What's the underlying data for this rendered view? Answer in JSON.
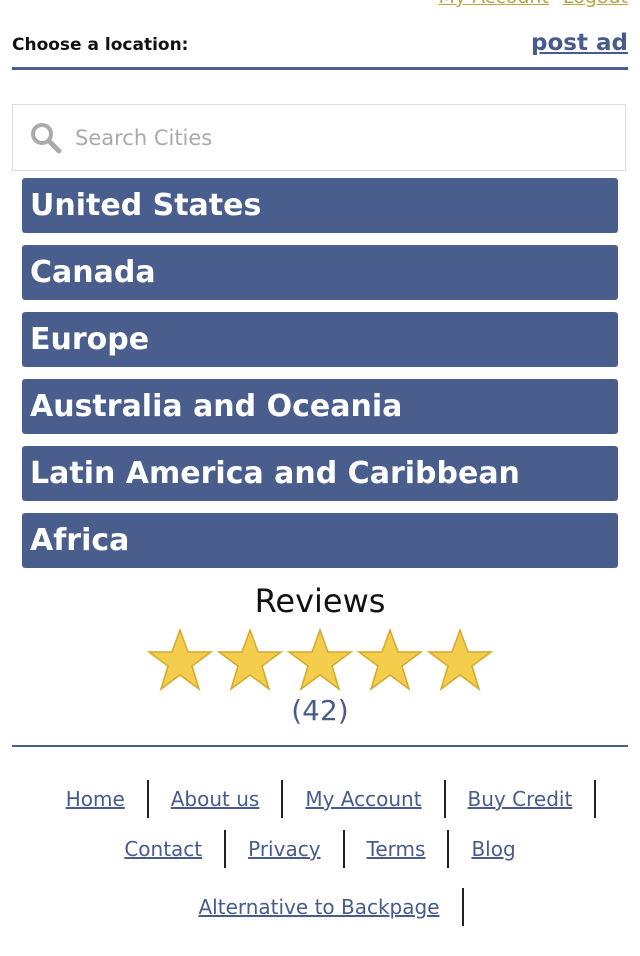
{
  "top_links": [
    "My Account",
    "Logout"
  ],
  "header": {
    "choose_label": "Choose a location:",
    "post_ad": "post ad"
  },
  "search": {
    "placeholder": "Search Cities",
    "icon": "search-icon"
  },
  "regions": [
    "United States",
    "Canada",
    "Europe",
    "Australia and Oceania",
    "Latin America and Caribbean",
    "Africa"
  ],
  "reviews": {
    "title": "Reviews",
    "rating": 5,
    "max": 5,
    "count": "(42)"
  },
  "footer": {
    "row1": [
      "Home",
      "About us",
      "My Account",
      "Buy Credit"
    ],
    "row2": [
      "Contact",
      "Privacy",
      "Terms",
      "Blog"
    ],
    "row3": [
      "Alternative to Backpage"
    ]
  },
  "colors": {
    "primary": "#4a5e8e",
    "star": "#f4cd4c",
    "toplink": "#b9a64a"
  }
}
